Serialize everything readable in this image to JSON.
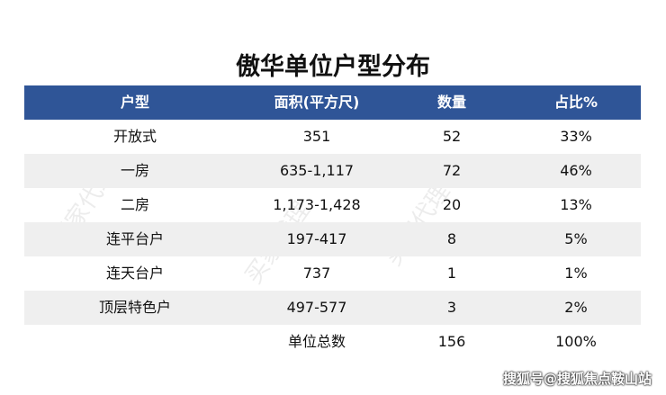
{
  "header": {
    "title": "傲华单位户型分布"
  },
  "table": {
    "columns": [
      "户型",
      "面积(平方尺)",
      "数量",
      "占比%"
    ],
    "rows": [
      [
        "开放式",
        "351",
        "52",
        "33%"
      ],
      [
        "一房",
        "635-1,117",
        "72",
        "46%"
      ],
      [
        "二房",
        "1,173-1,428",
        "20",
        "13%"
      ],
      [
        "连平台户",
        "197-417",
        "8",
        "5%"
      ],
      [
        "连天台户",
        "737",
        "1",
        "1%"
      ],
      [
        "顶层特色户",
        "497-577",
        "3",
        "2%"
      ]
    ],
    "total": {
      "label": "单位总数",
      "count": "156",
      "share": "100%"
    }
  },
  "watermark": "买家代理",
  "footer": "搜狐号@搜狐焦点鞍山站"
}
